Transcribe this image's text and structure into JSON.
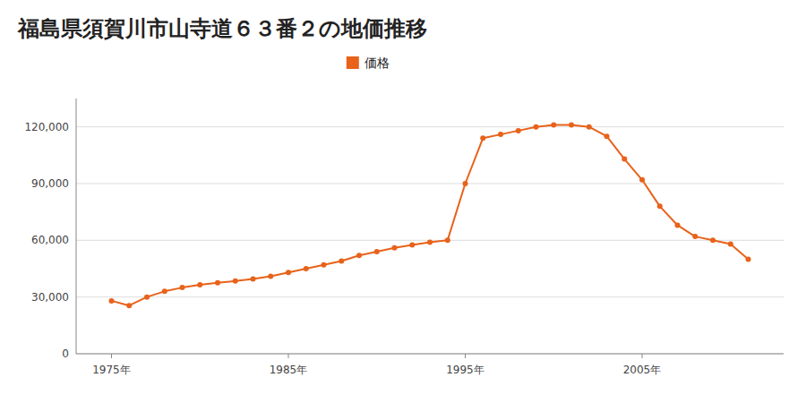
{
  "chart_data": {
    "type": "line",
    "title": "福島県須賀川市山寺道６３番２の地価推移",
    "x": [
      1975,
      1976,
      1977,
      1978,
      1979,
      1980,
      1981,
      1982,
      1983,
      1984,
      1985,
      1986,
      1987,
      1988,
      1989,
      1990,
      1991,
      1992,
      1993,
      1994,
      1995,
      1996,
      1997,
      1998,
      1999,
      2000,
      2001,
      2002,
      2003,
      2004,
      2005,
      2006,
      2007,
      2008,
      2009,
      2010,
      2011
    ],
    "series": [
      {
        "name": "価格",
        "color": "#E8621A",
        "marker": "circle",
        "values": [
          28000,
          25500,
          30000,
          33000,
          35000,
          36500,
          37500,
          38500,
          39500,
          41000,
          43000,
          45000,
          47000,
          49000,
          52000,
          54000,
          56000,
          57500,
          59000,
          60000,
          90000,
          114000,
          116000,
          118000,
          120000,
          121000,
          121000,
          120000,
          115000,
          103000,
          92000,
          78000,
          68000,
          62000,
          60000,
          58000,
          50000
        ]
      }
    ],
    "xlim": [
      1973,
      2013
    ],
    "xticks": [
      {
        "value": 1975,
        "label": "1975年"
      },
      {
        "value": 1985,
        "label": "1985年"
      },
      {
        "value": 1995,
        "label": "1995年"
      },
      {
        "value": 2005,
        "label": "2005年"
      }
    ],
    "ylim": [
      0,
      135000
    ],
    "yticks": [
      0,
      {
        "value": 30000,
        "label": "30,000"
      },
      {
        "value": 60000,
        "label": "60,000"
      },
      {
        "value": 90000,
        "label": "90,000"
      },
      {
        "value": 120000,
        "label": "120,000"
      }
    ],
    "grid": true,
    "legend": "top"
  }
}
